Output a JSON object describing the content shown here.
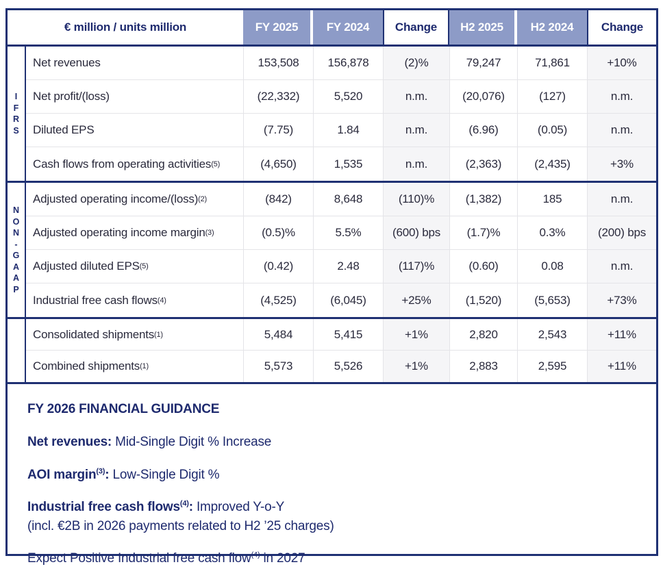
{
  "colors": {
    "border_navy": "#1f3173",
    "header_purple": "#8d9bc7",
    "navy_text": "#1e2a6e",
    "body_text": "#2a2a3c",
    "change_bg": "#f5f5f7"
  },
  "table": {
    "unit_header": "€ million / units million",
    "columns": [
      "FY 2025",
      "FY 2024",
      "Change",
      "H2 2025",
      "H2 2024",
      "Change"
    ],
    "sections": [
      {
        "group": "IFRS",
        "rows": [
          {
            "label": "Net revenues",
            "sup": "",
            "values": [
              "153,508",
              "156,878",
              "(2)%",
              "79,247",
              "71,861",
              "+10%"
            ]
          },
          {
            "label": "Net profit/(loss)",
            "sup": "",
            "values": [
              "(22,332)",
              "5,520",
              "n.m.",
              "(20,076)",
              "(127)",
              "n.m."
            ]
          },
          {
            "label": "Diluted EPS",
            "sup": "",
            "values": [
              "(7.75)",
              "1.84",
              "n.m.",
              "(6.96)",
              "(0.05)",
              "n.m."
            ]
          },
          {
            "label": "Cash flows from operating activities",
            "sup": "(5)",
            "values": [
              "(4,650)",
              "1,535",
              "n.m.",
              "(2,363)",
              "(2,435)",
              "+3%"
            ]
          }
        ]
      },
      {
        "group": "NON-GAAP",
        "rows": [
          {
            "label": "Adjusted operating income/(loss)",
            "sup": "(2)",
            "values": [
              "(842)",
              "8,648",
              "(110)%",
              "(1,382)",
              "185",
              "n.m."
            ]
          },
          {
            "label": "Adjusted operating income margin",
            "sup": "(3)",
            "values": [
              "(0.5)%",
              "5.5%",
              "(600) bps",
              "(1.7)%",
              "0.3%",
              "(200) bps"
            ]
          },
          {
            "label": "Adjusted diluted EPS",
            "sup": "(5)",
            "values": [
              "(0.42)",
              "2.48",
              "(117)%",
              "(0.60)",
              "0.08",
              "n.m."
            ]
          },
          {
            "label": "Industrial free cash flows",
            "sup": "(4)",
            "values": [
              "(4,525)",
              "(6,045)",
              "+25%",
              "(1,520)",
              "(5,653)",
              "+73%"
            ]
          }
        ]
      },
      {
        "group": "",
        "rows": [
          {
            "label": "Consolidated shipments",
            "sup": "(1)",
            "values": [
              "5,484",
              "5,415",
              "+1%",
              "2,820",
              "2,543",
              "+11%"
            ]
          },
          {
            "label": "Combined shipments",
            "sup": "(1)",
            "values": [
              "5,573",
              "5,526",
              "+1%",
              "2,883",
              "2,595",
              "+11%"
            ]
          }
        ]
      }
    ]
  },
  "guidance": {
    "title": "FY 2026 FINANCIAL GUIDANCE",
    "lines": [
      {
        "segments": [
          {
            "text": "Net revenues:",
            "bold": true
          },
          {
            "text": " Mid-Single Digit % Increase"
          }
        ]
      },
      {
        "segments": [
          {
            "text": "AOI margin",
            "bold": true
          },
          {
            "text": "(3)",
            "bold": true,
            "sup": true
          },
          {
            "text": ":",
            "bold": true
          },
          {
            "text": " Low-Single Digit %"
          }
        ]
      },
      {
        "segments": [
          {
            "text": "Industrial free cash flows",
            "bold": true
          },
          {
            "text": "(4)",
            "bold": true,
            "sup": true
          },
          {
            "text": ":",
            "bold": true
          },
          {
            "text": " Improved Y-o-Y"
          },
          {
            "text": "\n(incl. €2B in 2026 payments related to H2 ’25 charges)"
          }
        ]
      },
      {
        "segments": [
          {
            "text": "Expect Positive Industrial free cash flow"
          },
          {
            "text": "(4)",
            "sup": true
          },
          {
            "text": " in 2027"
          }
        ]
      }
    ]
  }
}
